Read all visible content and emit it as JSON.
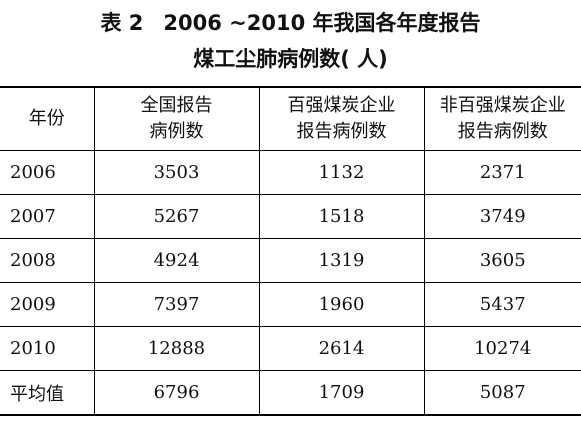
{
  "title": {
    "table_no": "表 2",
    "line1_rest": "2006 ~2010 年我国各年度报告",
    "line2": "煤工尘肺病例数( 人)"
  },
  "table": {
    "headers": [
      {
        "line1": "年份",
        "line2": ""
      },
      {
        "line1": "全国报告",
        "line2": "病例数"
      },
      {
        "line1": "百强煤炭企业",
        "line2": "报告病例数"
      },
      {
        "line1": "非百强煤炭企业",
        "line2": "报告病例数"
      }
    ],
    "rows": [
      [
        "2006",
        "3503",
        "1132",
        "2371"
      ],
      [
        "2007",
        "5267",
        "1518",
        "3749"
      ],
      [
        "2008",
        "4924",
        "1319",
        "3605"
      ],
      [
        "2009",
        "7397",
        "1960",
        "5437"
      ],
      [
        "2010",
        "12888",
        "2614",
        "10274"
      ],
      [
        "平均值",
        "6796",
        "1709",
        "5087"
      ]
    ]
  }
}
